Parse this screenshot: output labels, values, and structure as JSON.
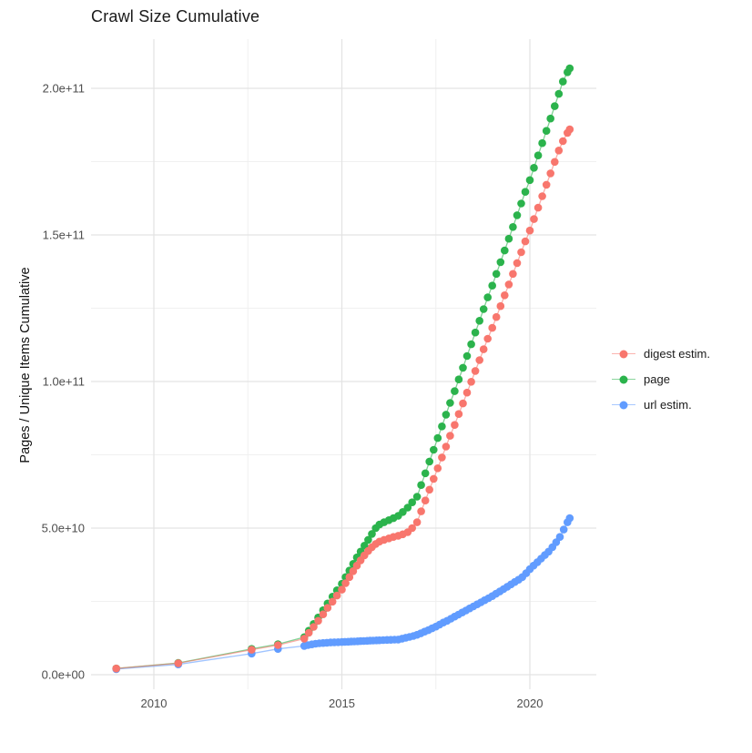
{
  "chart": {
    "title": "Crawl Size Cumulative",
    "ylabel": "Pages / Unique Items Cumulative",
    "xlabel": ""
  },
  "chart_data": {
    "type": "scatter",
    "title": "Crawl Size Cumulative",
    "xlabel": "",
    "ylabel": "Pages / Unique Items Cumulative",
    "x_unit": "year",
    "value_unit": "pages, in billions (1e9)",
    "xlim": [
      2008.5,
      2021.8
    ],
    "ylim_billions": [
      0,
      216
    ],
    "grid": true,
    "legend_position": "right",
    "x_ticks": {
      "major": [
        2010,
        2015,
        2020
      ],
      "labels": [
        "2010",
        "2015",
        "2020"
      ],
      "minor": [
        2012.5,
        2017.5
      ]
    },
    "y_ticks": {
      "major_billions": [
        0,
        50,
        100,
        150,
        200
      ],
      "labels": [
        "0.0e+00",
        "5.0e+10",
        "1.0e+11",
        "1.5e+11",
        "2.0e+11"
      ],
      "minor_billions": [
        25,
        75,
        125,
        175
      ]
    },
    "series": [
      {
        "name": "digest estim.",
        "color": "#F8766D",
        "points": [
          [
            2009.0,
            2.1
          ],
          [
            2010.65,
            3.9
          ],
          [
            2012.6,
            8.5
          ],
          [
            2013.3,
            10.1
          ],
          [
            2014.0,
            12.3
          ],
          [
            2014.12,
            14.3
          ],
          [
            2014.25,
            16.3
          ],
          [
            2014.37,
            18.4
          ],
          [
            2014.5,
            20.6
          ],
          [
            2014.62,
            22.8
          ],
          [
            2014.75,
            24.9
          ],
          [
            2014.87,
            27.0
          ],
          [
            2015.0,
            29.0
          ],
          [
            2015.1,
            31.2
          ],
          [
            2015.2,
            33.3
          ],
          [
            2015.3,
            35.3
          ],
          [
            2015.4,
            37.2
          ],
          [
            2015.5,
            39.0
          ],
          [
            2015.6,
            40.7
          ],
          [
            2015.7,
            42.2
          ],
          [
            2015.8,
            43.5
          ],
          [
            2015.9,
            44.6
          ],
          [
            2016.0,
            45.4
          ],
          [
            2016.12,
            46.0
          ],
          [
            2016.25,
            46.5
          ],
          [
            2016.37,
            47.0
          ],
          [
            2016.5,
            47.4
          ],
          [
            2016.62,
            47.9
          ],
          [
            2016.75,
            48.6
          ],
          [
            2016.87,
            50.0
          ],
          [
            2017.0,
            52.0
          ],
          [
            2017.11,
            55.7
          ],
          [
            2017.22,
            59.4
          ],
          [
            2017.33,
            63.1
          ],
          [
            2017.44,
            66.8
          ],
          [
            2017.55,
            70.4
          ],
          [
            2017.66,
            74.1
          ],
          [
            2017.77,
            77.8
          ],
          [
            2017.88,
            81.5
          ],
          [
            2018.0,
            85.2
          ],
          [
            2018.11,
            88.9
          ],
          [
            2018.22,
            92.5
          ],
          [
            2018.33,
            96.2
          ],
          [
            2018.44,
            99.9
          ],
          [
            2018.55,
            103.6
          ],
          [
            2018.66,
            107.3
          ],
          [
            2018.77,
            111.0
          ],
          [
            2018.88,
            114.6
          ],
          [
            2019.0,
            118.3
          ],
          [
            2019.11,
            122.0
          ],
          [
            2019.22,
            125.7
          ],
          [
            2019.33,
            129.4
          ],
          [
            2019.44,
            133.1
          ],
          [
            2019.55,
            136.7
          ],
          [
            2019.66,
            140.4
          ],
          [
            2019.77,
            144.1
          ],
          [
            2019.88,
            147.8
          ],
          [
            2020.0,
            151.5
          ],
          [
            2020.11,
            155.4
          ],
          [
            2020.22,
            159.3
          ],
          [
            2020.33,
            163.2
          ],
          [
            2020.44,
            167.1
          ],
          [
            2020.55,
            171.0
          ],
          [
            2020.66,
            174.9
          ],
          [
            2020.77,
            178.8
          ],
          [
            2020.88,
            182.0
          ],
          [
            2021.0,
            184.8
          ],
          [
            2021.06,
            186.0
          ]
        ]
      },
      {
        "name": "page",
        "color": "#2BB34C",
        "points": [
          [
            2009.0,
            2.1
          ],
          [
            2010.65,
            4.0
          ],
          [
            2012.6,
            8.8
          ],
          [
            2013.3,
            10.4
          ],
          [
            2014.0,
            12.8
          ],
          [
            2014.12,
            15.0
          ],
          [
            2014.25,
            17.3
          ],
          [
            2014.37,
            19.5
          ],
          [
            2014.5,
            22.0
          ],
          [
            2014.62,
            24.3
          ],
          [
            2014.75,
            26.6
          ],
          [
            2014.87,
            28.8
          ],
          [
            2015.0,
            31.0
          ],
          [
            2015.1,
            33.3
          ],
          [
            2015.2,
            35.5
          ],
          [
            2015.3,
            37.8
          ],
          [
            2015.4,
            40.0
          ],
          [
            2015.5,
            42.0
          ],
          [
            2015.6,
            44.0
          ],
          [
            2015.7,
            46.0
          ],
          [
            2015.8,
            48.0
          ],
          [
            2015.9,
            50.0
          ],
          [
            2016.0,
            51.2
          ],
          [
            2016.12,
            52.0
          ],
          [
            2016.25,
            52.7
          ],
          [
            2016.37,
            53.4
          ],
          [
            2016.5,
            54.2
          ],
          [
            2016.62,
            55.5
          ],
          [
            2016.75,
            57.0
          ],
          [
            2016.87,
            58.8
          ],
          [
            2017.0,
            60.7
          ],
          [
            2017.11,
            64.7
          ],
          [
            2017.22,
            68.7
          ],
          [
            2017.33,
            72.7
          ],
          [
            2017.44,
            76.7
          ],
          [
            2017.55,
            80.7
          ],
          [
            2017.66,
            84.7
          ],
          [
            2017.77,
            88.7
          ],
          [
            2017.88,
            92.7
          ],
          [
            2018.0,
            96.7
          ],
          [
            2018.11,
            100.7
          ],
          [
            2018.22,
            104.7
          ],
          [
            2018.33,
            108.7
          ],
          [
            2018.44,
            112.7
          ],
          [
            2018.55,
            116.7
          ],
          [
            2018.66,
            120.7
          ],
          [
            2018.77,
            124.7
          ],
          [
            2018.88,
            128.7
          ],
          [
            2019.0,
            132.7
          ],
          [
            2019.11,
            136.7
          ],
          [
            2019.22,
            140.7
          ],
          [
            2019.33,
            144.7
          ],
          [
            2019.44,
            148.7
          ],
          [
            2019.55,
            152.7
          ],
          [
            2019.66,
            156.7
          ],
          [
            2019.77,
            160.7
          ],
          [
            2019.88,
            164.7
          ],
          [
            2020.0,
            168.7
          ],
          [
            2020.11,
            172.9
          ],
          [
            2020.22,
            177.1
          ],
          [
            2020.33,
            181.3
          ],
          [
            2020.44,
            185.5
          ],
          [
            2020.55,
            189.7
          ],
          [
            2020.66,
            193.9
          ],
          [
            2020.77,
            198.1
          ],
          [
            2020.88,
            202.3
          ],
          [
            2021.0,
            205.5
          ],
          [
            2021.06,
            206.8
          ]
        ]
      },
      {
        "name": "url estim.",
        "color": "#619CFF",
        "points": [
          [
            2009.0,
            1.9
          ],
          [
            2010.65,
            3.5
          ],
          [
            2012.6,
            7.2
          ],
          [
            2013.3,
            8.8
          ],
          [
            2014.0,
            9.8
          ],
          [
            2014.1,
            10.1
          ],
          [
            2014.2,
            10.35
          ],
          [
            2014.3,
            10.55
          ],
          [
            2014.4,
            10.7
          ],
          [
            2014.5,
            10.8
          ],
          [
            2014.6,
            10.9
          ],
          [
            2014.7,
            11.0
          ],
          [
            2014.8,
            11.05
          ],
          [
            2014.9,
            11.1
          ],
          [
            2015.0,
            11.15
          ],
          [
            2015.08,
            11.2
          ],
          [
            2015.17,
            11.25
          ],
          [
            2015.25,
            11.3
          ],
          [
            2015.33,
            11.35
          ],
          [
            2015.42,
            11.4
          ],
          [
            2015.5,
            11.45
          ],
          [
            2015.58,
            11.5
          ],
          [
            2015.67,
            11.55
          ],
          [
            2015.75,
            11.6
          ],
          [
            2015.83,
            11.65
          ],
          [
            2015.92,
            11.7
          ],
          [
            2016.0,
            11.75
          ],
          [
            2016.1,
            11.8
          ],
          [
            2016.2,
            11.85
          ],
          [
            2016.3,
            11.9
          ],
          [
            2016.4,
            11.95
          ],
          [
            2016.5,
            12.0
          ],
          [
            2016.6,
            12.3
          ],
          [
            2016.7,
            12.6
          ],
          [
            2016.8,
            12.9
          ],
          [
            2016.9,
            13.2
          ],
          [
            2017.0,
            13.6
          ],
          [
            2017.1,
            14.1
          ],
          [
            2017.2,
            14.7
          ],
          [
            2017.3,
            15.2
          ],
          [
            2017.4,
            15.8
          ],
          [
            2017.5,
            16.4
          ],
          [
            2017.6,
            17.1
          ],
          [
            2017.7,
            17.8
          ],
          [
            2017.8,
            18.4
          ],
          [
            2017.9,
            19.1
          ],
          [
            2018.0,
            19.8
          ],
          [
            2018.1,
            20.5
          ],
          [
            2018.2,
            21.2
          ],
          [
            2018.3,
            21.9
          ],
          [
            2018.4,
            22.6
          ],
          [
            2018.5,
            23.3
          ],
          [
            2018.6,
            24.0
          ],
          [
            2018.7,
            24.7
          ],
          [
            2018.8,
            25.4
          ],
          [
            2018.9,
            26.1
          ],
          [
            2019.0,
            26.8
          ],
          [
            2019.1,
            27.6
          ],
          [
            2019.2,
            28.4
          ],
          [
            2019.3,
            29.2
          ],
          [
            2019.4,
            30.0
          ],
          [
            2019.5,
            30.8
          ],
          [
            2019.6,
            31.6
          ],
          [
            2019.7,
            32.4
          ],
          [
            2019.8,
            33.3
          ],
          [
            2019.9,
            34.6
          ],
          [
            2020.0,
            36.0
          ],
          [
            2020.1,
            37.2
          ],
          [
            2020.2,
            38.4
          ],
          [
            2020.3,
            39.6
          ],
          [
            2020.4,
            40.8
          ],
          [
            2020.5,
            42.0
          ],
          [
            2020.6,
            43.5
          ],
          [
            2020.7,
            45.2
          ],
          [
            2020.8,
            47.0
          ],
          [
            2020.9,
            49.5
          ],
          [
            2021.0,
            52.0
          ],
          [
            2021.06,
            53.4
          ]
        ]
      }
    ],
    "draw_order": [
      "page",
      "url estim.",
      "digest estim."
    ]
  },
  "style_colors": {
    "grid_major": "#e3e3e3",
    "grid_minor": "#f0f0f0",
    "axis_text": "#4d4d4d",
    "title_text": "#1a1a1a",
    "background": "#ffffff"
  }
}
